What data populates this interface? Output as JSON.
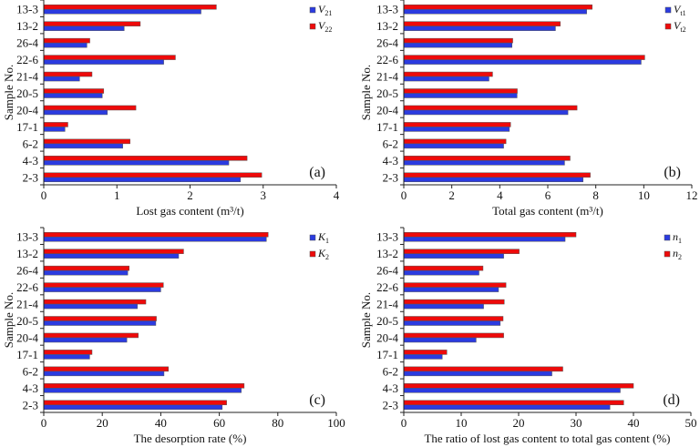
{
  "chart_data": [
    {
      "type": "bar",
      "orientation": "horizontal",
      "panel_label": "(a)",
      "xlabel": "Lost gas content (m³/t)",
      "ylabel": "Sample No.",
      "xlim": [
        0,
        4
      ],
      "xticks": [
        0,
        1,
        2,
        3,
        4
      ],
      "categories": [
        "13-3",
        "13-2",
        "26-4",
        "22-6",
        "21-4",
        "20-5",
        "20-4",
        "17-1",
        "6-2",
        "4-3",
        "2-3"
      ],
      "series": [
        {
          "name": "V",
          "sub": "21",
          "color": "#2b3be0",
          "values": [
            2.15,
            1.1,
            0.59,
            1.64,
            0.49,
            0.8,
            0.87,
            0.29,
            1.08,
            2.53,
            2.69
          ]
        },
        {
          "name": "V",
          "sub": "22",
          "color": "#ee0a0a",
          "values": [
            2.36,
            1.32,
            0.63,
            1.8,
            0.66,
            0.82,
            1.26,
            0.33,
            1.18,
            2.78,
            2.98
          ]
        }
      ],
      "legend": "top-right"
    },
    {
      "type": "bar",
      "orientation": "horizontal",
      "panel_label": "(b)",
      "xlabel": "Total gas content (m³/t)",
      "ylabel": "Sample No.",
      "xlim": [
        0,
        12
      ],
      "xticks": [
        0,
        2,
        4,
        6,
        8,
        10,
        12
      ],
      "categories": [
        "13-3",
        "13-2",
        "26-4",
        "22-6",
        "21-4",
        "20-5",
        "20-4",
        "17-1",
        "6-2",
        "4-3",
        "2-3"
      ],
      "series": [
        {
          "name": "V",
          "sub": "t1",
          "color": "#2b3be0",
          "values": [
            7.62,
            6.32,
            4.51,
            9.89,
            3.55,
            4.72,
            6.84,
            4.4,
            4.16,
            6.7,
            7.47
          ]
        },
        {
          "name": "V",
          "sub": "t2",
          "color": "#ee0a0a",
          "values": [
            7.85,
            6.52,
            4.54,
            10.04,
            3.7,
            4.73,
            7.22,
            4.45,
            4.26,
            6.93,
            7.77
          ]
        }
      ],
      "legend": "top-right"
    },
    {
      "type": "bar",
      "orientation": "horizontal",
      "panel_label": "(c)",
      "xlabel": "The desorption rate (%)",
      "ylabel": "Sample No.",
      "xlim": [
        0,
        100
      ],
      "xticks": [
        0,
        20,
        40,
        60,
        80,
        100
      ],
      "categories": [
        "13-3",
        "13-2",
        "26-4",
        "22-6",
        "21-4",
        "20-5",
        "20-4",
        "17-1",
        "6-2",
        "4-3",
        "2-3"
      ],
      "series": [
        {
          "name": "K",
          "sub": "1",
          "color": "#2b3be0",
          "values": [
            76.1,
            46.1,
            28.7,
            40.0,
            32.0,
            38.3,
            28.4,
            15.7,
            41.1,
            67.5,
            61.0
          ]
        },
        {
          "name": "K",
          "sub": "2",
          "color": "#ee0a0a",
          "values": [
            76.7,
            47.8,
            29.2,
            40.9,
            34.9,
            38.5,
            32.3,
            16.5,
            42.6,
            68.5,
            62.5
          ]
        }
      ],
      "legend": "top-right"
    },
    {
      "type": "bar",
      "orientation": "horizontal",
      "panel_label": "(d)",
      "xlabel": "The ratio of lost gas content to total gas content (%)",
      "ylabel": "Sample No.",
      "xlim": [
        0,
        50
      ],
      "xticks": [
        0,
        10,
        20,
        30,
        40,
        50
      ],
      "categories": [
        "13-3",
        "13-2",
        "26-4",
        "22-6",
        "21-4",
        "20-5",
        "20-4",
        "17-1",
        "6-2",
        "4-3",
        "2-3"
      ],
      "series": [
        {
          "name": "n",
          "sub": "1",
          "color": "#2b3be0",
          "values": [
            28.1,
            17.4,
            13.1,
            16.5,
            13.9,
            16.8,
            12.6,
            6.7,
            25.8,
            37.7,
            35.9
          ]
        },
        {
          "name": "n",
          "sub": "2",
          "color": "#ee0a0a",
          "values": [
            30.0,
            20.1,
            13.8,
            17.8,
            17.5,
            17.3,
            17.4,
            7.5,
            27.7,
            40.0,
            38.3
          ]
        }
      ],
      "legend": "top-right"
    }
  ]
}
